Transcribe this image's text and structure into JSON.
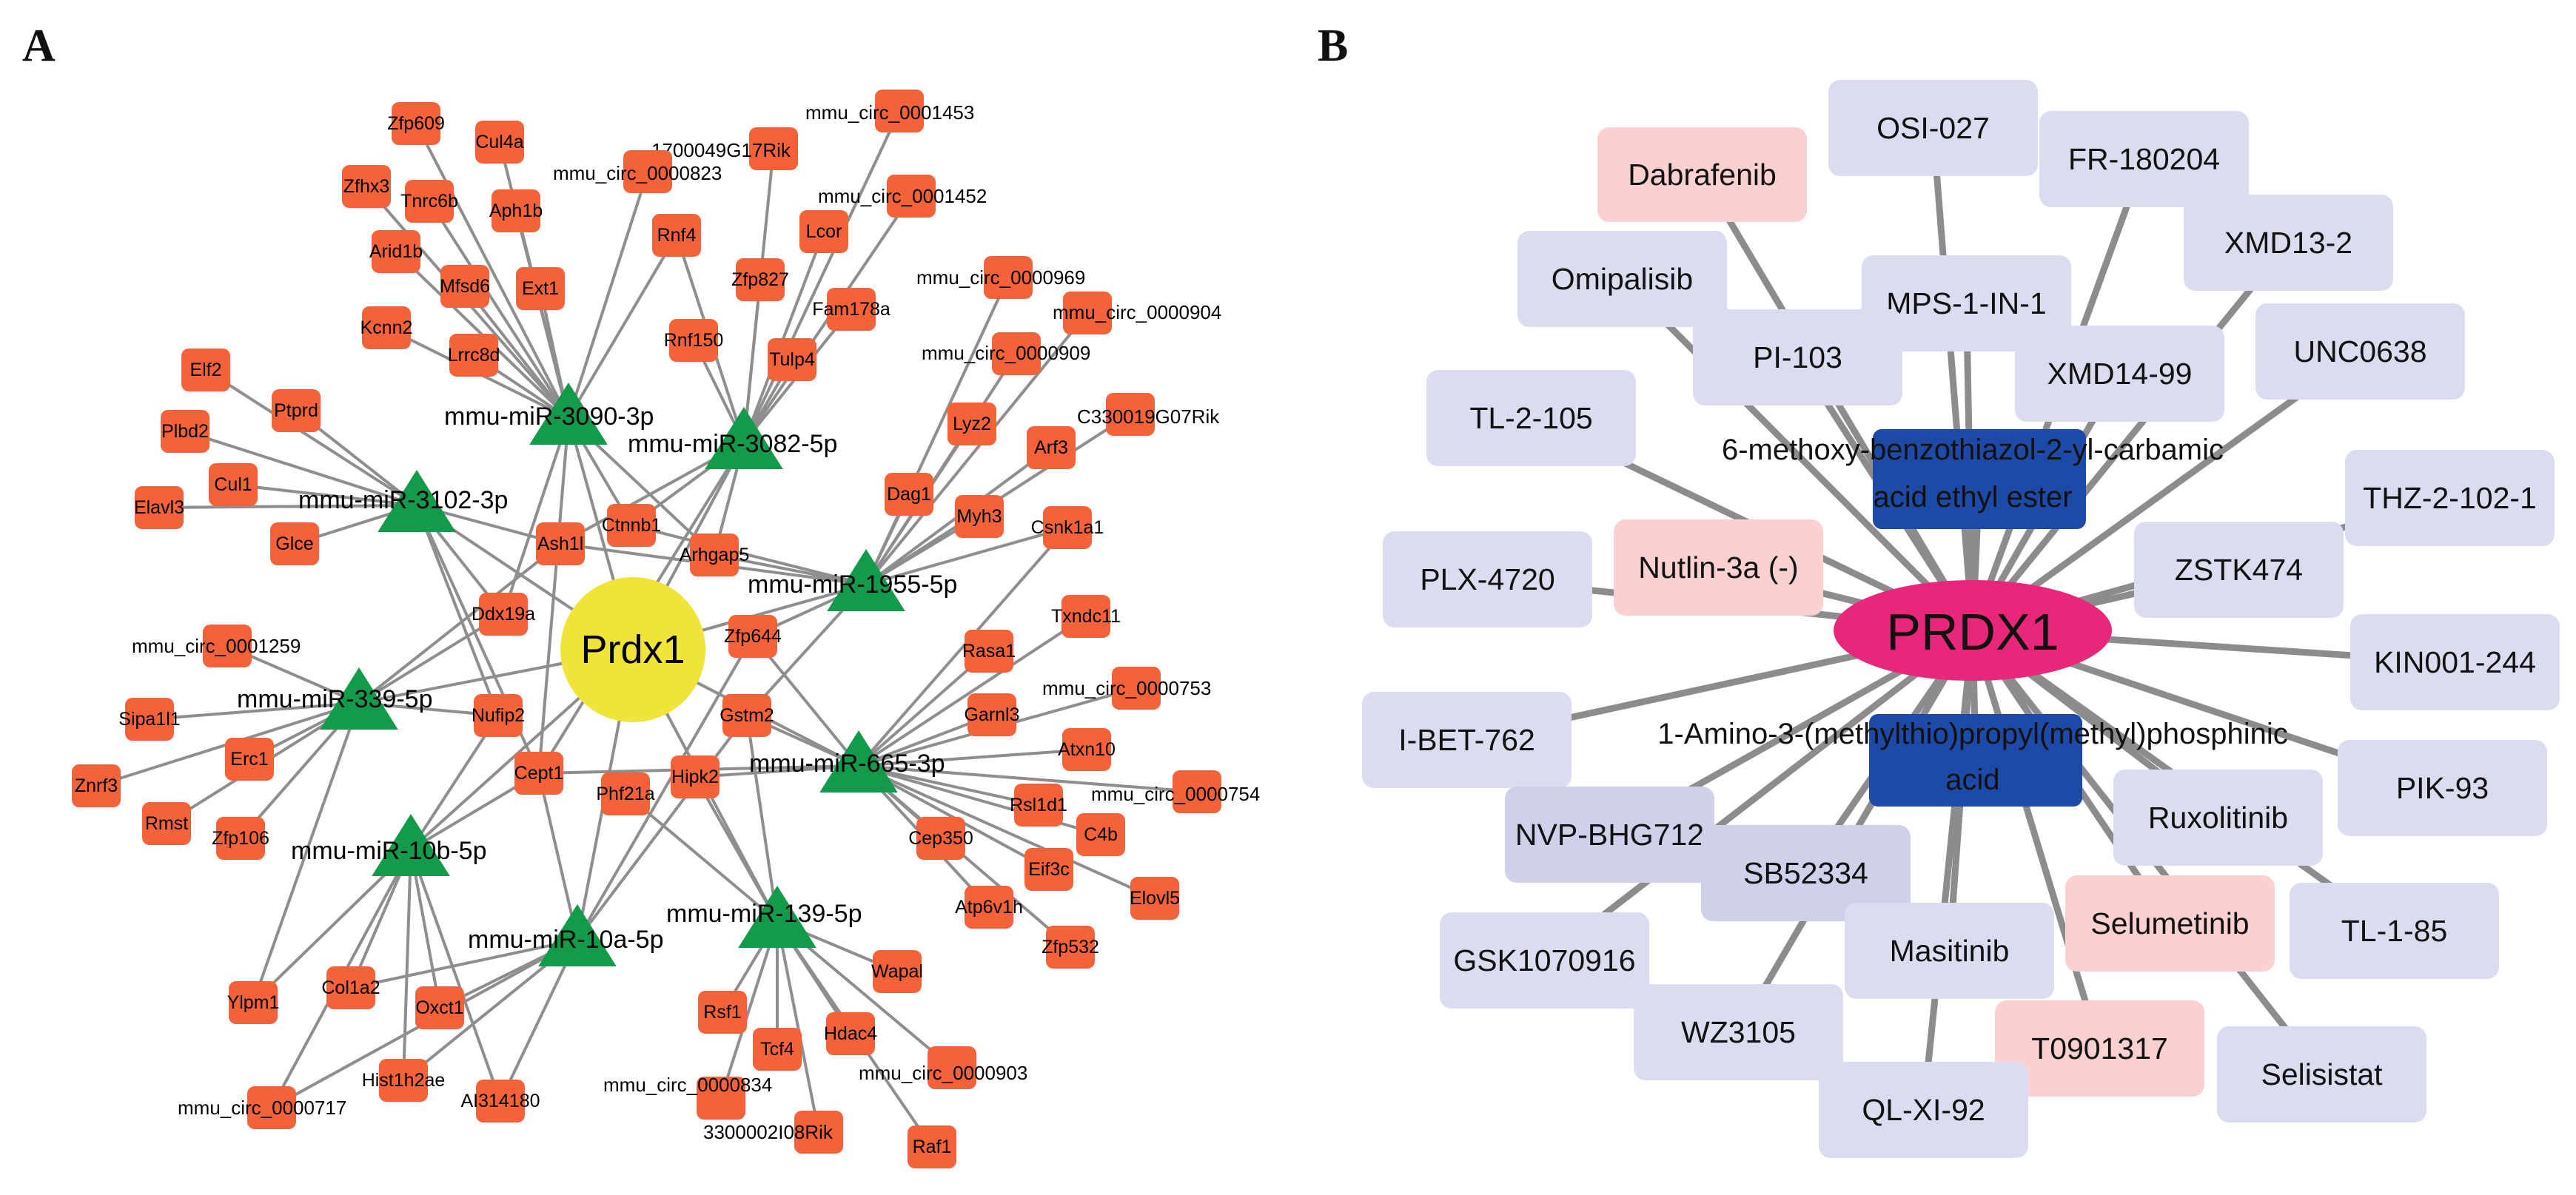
{
  "panel_a": {
    "label": "A",
    "center": {
      "name": "Prdx1",
      "color": "#f0e43a"
    },
    "mirnas": [
      {
        "id": "m3090",
        "name": "mmu-miR-3090-3p"
      },
      {
        "id": "m3082",
        "name": "mmu-miR-3082-5p"
      },
      {
        "id": "m3102",
        "name": "mmu-miR-3102-3p"
      },
      {
        "id": "m1955",
        "name": "mmu-miR-1955-5p"
      },
      {
        "id": "m339",
        "name": "mmu-miR-339-5p"
      },
      {
        "id": "m665",
        "name": "mmu-miR-665-3p"
      },
      {
        "id": "m10b",
        "name": "mmu-miR-10b-5p"
      },
      {
        "id": "m139",
        "name": "mmu-miR-139-5p"
      },
      {
        "id": "m10a",
        "name": "mmu-miR-10a-5p"
      }
    ],
    "genes": [
      "Zfp609",
      "Cul4a",
      "Zfhx3",
      "Tnrc6b",
      "Aph1b",
      "Arid1b",
      "Mfsd6",
      "Ext1",
      "Kcnn2",
      "Lrrc8d",
      "Rnf4",
      "Lcor",
      "Zfp827",
      "Fam178a",
      "Rnf150",
      "Tulp4",
      "Elf2",
      "Ptprd",
      "Plbd2",
      "Cul1",
      "Elavl3",
      "Glce",
      "Ash1l",
      "Ctnnb1",
      "Arhgap5",
      "Ddx19a",
      "Lyz2",
      "Arf3",
      "Dag1",
      "Myh3",
      "Csnk1a1",
      "Zfp644",
      "Txndc11",
      "Rasa1",
      "Garnl3",
      "Sipa1l1",
      "Erc1",
      "Znrf3",
      "Rmst",
      "Zfp106",
      "Nufip2",
      "Gstm2",
      "Atxn10",
      "Cept1",
      "Phf21a",
      "Hipk2",
      "Rsl1d1",
      "C4b",
      "Eif3c",
      "Elovl5",
      "Cep350",
      "Atp6v1h",
      "Zfp532",
      "Ylpm1",
      "Col1a2",
      "Oxct1",
      "Hist1h2ae",
      "AI314180",
      "Wapal",
      "Rsf1",
      "Hdac4",
      "Tcf4",
      "Raf1"
    ],
    "circ_labels": [
      "mmu_circ_0001453",
      "1700049G17Rik",
      "mmu_circ_0000823",
      "mmu_circ_0001452",
      "mmu_circ_0000969",
      "mmu_circ_0000904",
      "mmu_circ_0000909",
      "C330019G07Rik",
      "mmu_circ_0001259",
      "mmu_circ_0000753",
      "mmu_circ_0000754",
      "mmu_circ_0000717",
      "mmu_circ_0000834",
      "3300002I08Rik",
      "mmu_circ_0000903"
    ]
  },
  "panel_b": {
    "label": "B",
    "hub": {
      "name": "PRDX1",
      "color": "#e8277a"
    },
    "compounds": [
      "6-methoxy-benzothiazol-2-yl-carbamic acid ethyl ester",
      "1-Amino-3-(methylthio)propyl(methyl)phosphinic acid"
    ],
    "drugs": [
      {
        "name": "Dabrafenib",
        "kind": "pink"
      },
      {
        "name": "OSI-027",
        "kind": "lav"
      },
      {
        "name": "FR-180204",
        "kind": "lav"
      },
      {
        "name": "XMD13-2",
        "kind": "lav"
      },
      {
        "name": "Omipalisib",
        "kind": "lav"
      },
      {
        "name": "MPS-1-IN-1",
        "kind": "lav"
      },
      {
        "name": "PI-103",
        "kind": "lav"
      },
      {
        "name": "XMD14-99",
        "kind": "lav"
      },
      {
        "name": "UNC0638",
        "kind": "lav"
      },
      {
        "name": "TL-2-105",
        "kind": "lav"
      },
      {
        "name": "THZ-2-102-1",
        "kind": "lav"
      },
      {
        "name": "ZSTK474",
        "kind": "lav"
      },
      {
        "name": "Nutlin-3a (-)",
        "kind": "pink"
      },
      {
        "name": "PLX-4720",
        "kind": "lav"
      },
      {
        "name": "KIN001-244",
        "kind": "lav"
      },
      {
        "name": "I-BET-762",
        "kind": "lav"
      },
      {
        "name": "PIK-93",
        "kind": "lav"
      },
      {
        "name": "NVP-BHG712",
        "kind": "lav2"
      },
      {
        "name": "Ruxolitinib",
        "kind": "lav"
      },
      {
        "name": "SB52334",
        "kind": "lav2"
      },
      {
        "name": "Selumetinib",
        "kind": "pink"
      },
      {
        "name": "TL-1-85",
        "kind": "lav"
      },
      {
        "name": "GSK1070916",
        "kind": "lav"
      },
      {
        "name": "Masitinib",
        "kind": "lav"
      },
      {
        "name": "WZ3105",
        "kind": "lav"
      },
      {
        "name": "T0901317",
        "kind": "pink"
      },
      {
        "name": "Selisistat",
        "kind": "lav"
      },
      {
        "name": "QL-XI-92",
        "kind": "lav"
      }
    ],
    "colors": {
      "lav": "#dcdcf0",
      "lav2": "#d0d0ea",
      "pink": "#fbd0d0",
      "compound": "#1c4aa6"
    }
  },
  "colors": {
    "gene": "#f4623a",
    "mirna": "#139a4a",
    "edge": "#8e8e8e"
  }
}
